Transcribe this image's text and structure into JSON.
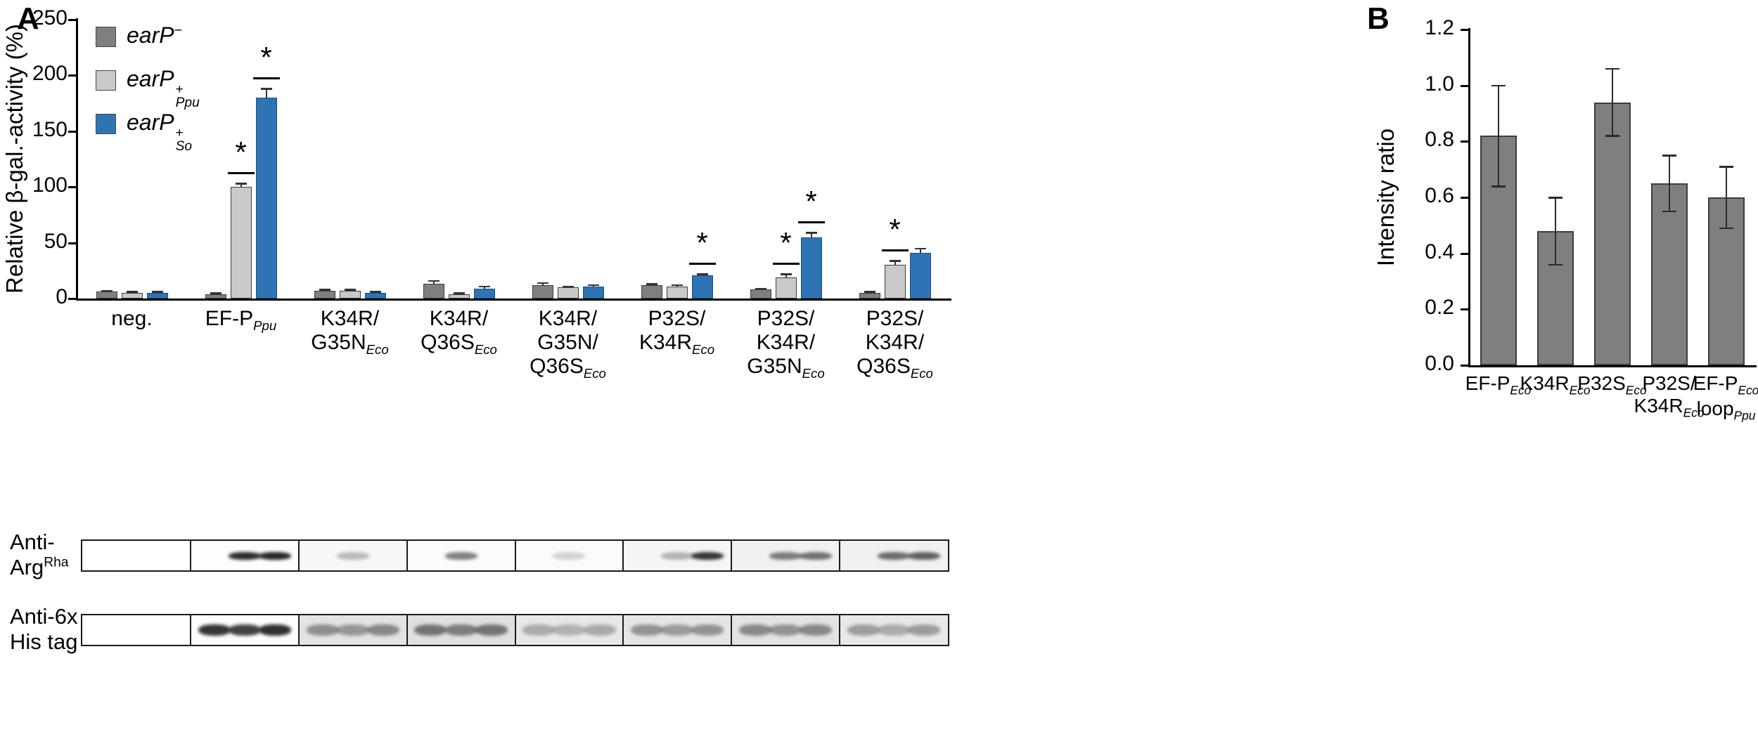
{
  "panels": {
    "a": "A",
    "b": "B"
  },
  "chart_data": [
    {
      "id": "panelA",
      "type": "bar",
      "title": "",
      "ylabel": "Relative β-gal.-activity (%)",
      "xlabel": "",
      "ylim": [
        0,
        250
      ],
      "yticks": [
        0,
        50,
        100,
        150,
        200,
        250
      ],
      "grid": false,
      "legend_position": "upper-left-inside",
      "legend": [
        {
          "color": "#7f7f7f",
          "tokens": [
            {
              "t": "earP",
              "s": "i"
            },
            {
              "t": "−",
              "s": "sup"
            }
          ]
        },
        {
          "color": "#c9c9c9",
          "tokens": [
            {
              "t": "earP",
              "s": "i"
            },
            {
              "stack": true,
              "top": "+",
              "bottom": "Ppu"
            }
          ]
        },
        {
          "color": "#2e74b5",
          "tokens": [
            {
              "t": "earP",
              "s": "i"
            },
            {
              "stack": true,
              "top": "+",
              "bottom": "So"
            }
          ]
        }
      ],
      "categories": [
        {
          "lines": [
            [
              {
                "t": "neg.",
                "s": "n"
              }
            ]
          ]
        },
        {
          "lines": [
            [
              {
                "t": "EF-P",
                "s": "n"
              },
              {
                "t": "Ppu",
                "s": "subi"
              }
            ]
          ]
        },
        {
          "lines": [
            [
              {
                "t": "K34R/",
                "s": "n"
              }
            ],
            [
              {
                "t": "G35N",
                "s": "n"
              },
              {
                "t": "Eco",
                "s": "subi"
              }
            ]
          ]
        },
        {
          "lines": [
            [
              {
                "t": "K34R/",
                "s": "n"
              }
            ],
            [
              {
                "t": "Q36S",
                "s": "n"
              },
              {
                "t": "Eco",
                "s": "subi"
              }
            ]
          ]
        },
        {
          "lines": [
            [
              {
                "t": "K34R/",
                "s": "n"
              }
            ],
            [
              {
                "t": "G35N/",
                "s": "n"
              }
            ],
            [
              {
                "t": "Q36S",
                "s": "n"
              },
              {
                "t": "Eco",
                "s": "subi"
              }
            ]
          ]
        },
        {
          "lines": [
            [
              {
                "t": "P32S/",
                "s": "n"
              }
            ],
            [
              {
                "t": "K34R",
                "s": "n"
              },
              {
                "t": "Eco",
                "s": "subi"
              }
            ]
          ]
        },
        {
          "lines": [
            [
              {
                "t": "P32S/",
                "s": "n"
              }
            ],
            [
              {
                "t": "K34R/",
                "s": "n"
              }
            ],
            [
              {
                "t": "G35N",
                "s": "n"
              },
              {
                "t": "Eco",
                "s": "subi"
              }
            ]
          ]
        },
        {
          "lines": [
            [
              {
                "t": "P32S/",
                "s": "n"
              }
            ],
            [
              {
                "t": "K34R/",
                "s": "n"
              }
            ],
            [
              {
                "t": "Q36S",
                "s": "n"
              },
              {
                "t": "Eco",
                "s": "subi"
              }
            ]
          ]
        }
      ],
      "series": [
        {
          "name": "earP-",
          "color": "#7f7f7f",
          "border": "#3d3d3d",
          "values": [
            6,
            4,
            7,
            13,
            12,
            12,
            8,
            5
          ],
          "errors": [
            1,
            1,
            1,
            3,
            2,
            1,
            1,
            1
          ],
          "sig": [
            false,
            false,
            false,
            false,
            false,
            false,
            false,
            false
          ]
        },
        {
          "name": "earP+ Ppu",
          "color": "#c9c9c9",
          "border": "#3d3d3d",
          "values": [
            5,
            100,
            7,
            4,
            10,
            11,
            19,
            30
          ],
          "errors": [
            1,
            3,
            1,
            1,
            1,
            1,
            3,
            4
          ],
          "sig": [
            false,
            true,
            false,
            false,
            false,
            false,
            true,
            true
          ]
        },
        {
          "name": "earP+ So",
          "color": "#2e74b5",
          "border": "#1c4d7c",
          "values": [
            5,
            180,
            5,
            9,
            11,
            21,
            55,
            41
          ],
          "errors": [
            1,
            8,
            1,
            2,
            1,
            1,
            4,
            4
          ],
          "sig": [
            false,
            true,
            false,
            false,
            false,
            true,
            true,
            false
          ]
        }
      ]
    },
    {
      "id": "panelB",
      "type": "bar",
      "title": "",
      "ylabel": "Intensity ratio",
      "xlabel": "",
      "ylim": [
        0,
        1.2
      ],
      "yticks": [
        "0.0",
        "0.2",
        "0.4",
        "0.6",
        "0.8",
        "1.0",
        "1.2"
      ],
      "grid": false,
      "bar_color": "#7f7f7f",
      "bar_border": "#3d3d3d",
      "categories": [
        {
          "lines": [
            [
              {
                "t": "EF-P",
                "s": "n"
              },
              {
                "t": "Eco",
                "s": "subi"
              }
            ]
          ]
        },
        {
          "lines": [
            [
              {
                "t": "K34R",
                "s": "n"
              },
              {
                "t": "Eco",
                "s": "subi"
              }
            ]
          ]
        },
        {
          "lines": [
            [
              {
                "t": "P32S",
                "s": "n"
              },
              {
                "t": "Eco",
                "s": "subi"
              }
            ]
          ]
        },
        {
          "lines": [
            [
              {
                "t": "P32S/",
                "s": "n"
              }
            ],
            [
              {
                "t": "K34R",
                "s": "n"
              },
              {
                "t": "Eco",
                "s": "subi"
              }
            ]
          ]
        },
        {
          "lines": [
            [
              {
                "t": "EF-P",
                "s": "n"
              },
              {
                "t": "Eco",
                "s": "subi"
              }
            ],
            [
              {
                "t": "loop",
                "s": "n"
              },
              {
                "t": "Ppu",
                "s": "subi"
              }
            ]
          ]
        }
      ],
      "values": [
        0.82,
        0.48,
        0.94,
        0.65,
        0.6
      ],
      "errors": [
        0.18,
        0.12,
        0.12,
        0.1,
        0.11
      ]
    }
  ],
  "blots": {
    "lane_fractions": [
      0.22,
      0.5,
      0.78
    ],
    "rows": [
      {
        "name": "anti-arg-rha",
        "label_lines": [
          [
            {
              "t": "Anti-",
              "s": "n"
            }
          ],
          [
            {
              "t": "Arg",
              "s": "n"
            },
            {
              "t": "Rha",
              "s": "sup"
            }
          ]
        ],
        "band_height": 11,
        "segments": [
          {
            "bg": "#ffffff",
            "lanes": [
              0,
              0,
              0
            ]
          },
          {
            "bg": "#fdfdfd",
            "lanes": [
              0,
              0.92,
              0.95
            ]
          },
          {
            "bg": "#f7f7f7",
            "lanes": [
              0,
              0.28,
              0
            ]
          },
          {
            "bg": "#fbfbfb",
            "lanes": [
              0,
              0.55,
              0
            ]
          },
          {
            "bg": "#fbfbfb",
            "lanes": [
              0,
              0.18,
              0
            ]
          },
          {
            "bg": "#f5f5f5",
            "lanes": [
              0,
              0.3,
              0.88
            ]
          },
          {
            "bg": "#f1f1f1",
            "lanes": [
              0,
              0.55,
              0.6
            ]
          },
          {
            "bg": "#f1f1f1",
            "lanes": [
              0,
              0.62,
              0.68
            ]
          }
        ]
      },
      {
        "name": "anti-6x-his",
        "label_lines": [
          [
            {
              "t": "Anti-6x",
              "s": "n"
            }
          ],
          [
            {
              "t": "His tag",
              "s": "n"
            }
          ]
        ],
        "band_height": 16,
        "segments": [
          {
            "bg": "#ffffff",
            "lanes": [
              0,
              0,
              0
            ]
          },
          {
            "bg": "#fdfdfd",
            "lanes": [
              0.88,
              0.82,
              0.9
            ]
          },
          {
            "bg": "#e3e3e3",
            "lanes": [
              0.42,
              0.38,
              0.45
            ]
          },
          {
            "bg": "#e0e0e0",
            "lanes": [
              0.55,
              0.5,
              0.55
            ]
          },
          {
            "bg": "#e8e8e8",
            "lanes": [
              0.3,
              0.26,
              0.3
            ]
          },
          {
            "bg": "#e5e5e5",
            "lanes": [
              0.4,
              0.36,
              0.4
            ]
          },
          {
            "bg": "#e3e3e3",
            "lanes": [
              0.45,
              0.4,
              0.45
            ]
          },
          {
            "bg": "#e8e8e8",
            "lanes": [
              0.36,
              0.3,
              0.36
            ]
          }
        ]
      }
    ]
  }
}
